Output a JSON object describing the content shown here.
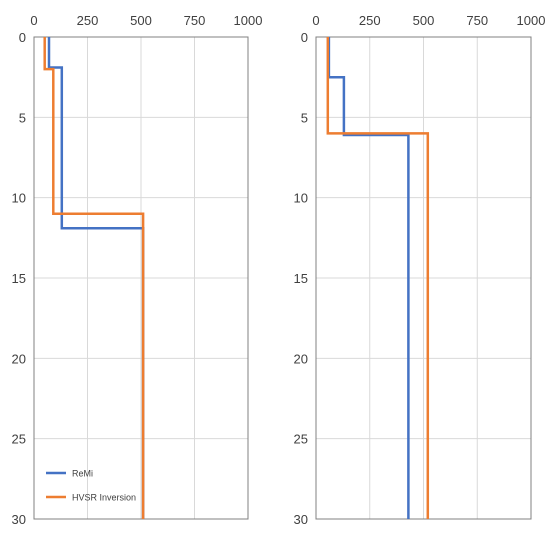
{
  "chart_data": [
    {
      "type": "line",
      "orientation": "vertical-profile",
      "x_axis_position": "top",
      "y_axis_inverted": true,
      "xlim": [
        0,
        1000
      ],
      "ylim": [
        0,
        30
      ],
      "x_ticks": [
        0,
        250,
        500,
        750,
        1000
      ],
      "y_ticks": [
        0,
        5,
        10,
        15,
        20,
        25,
        30
      ],
      "x_tick_labels": [
        "0",
        "250",
        "500",
        "750",
        "1000"
      ],
      "y_tick_labels": [
        "0",
        "5",
        "10",
        "15",
        "20",
        "25",
        "30"
      ],
      "grid": true,
      "legend": {
        "position": "bottom-left",
        "entries": [
          "ReMi",
          "HVSR Inversion"
        ]
      },
      "series": [
        {
          "name": "ReMi",
          "color": "#4472c4",
          "points": [
            [
              70,
              0
            ],
            [
              70,
              1.9
            ],
            [
              130,
              1.9
            ],
            [
              130,
              11.9
            ],
            [
              510,
              11.9
            ],
            [
              510,
              30
            ]
          ]
        },
        {
          "name": "HVSR Inversion",
          "color": "#ed7d31",
          "points": [
            [
              50,
              0
            ],
            [
              50,
              2.0
            ],
            [
              90,
              2.0
            ],
            [
              90,
              11.0
            ],
            [
              510,
              11.0
            ],
            [
              510,
              30
            ]
          ]
        }
      ]
    },
    {
      "type": "line",
      "orientation": "vertical-profile",
      "x_axis_position": "top",
      "y_axis_inverted": true,
      "xlim": [
        0,
        1000
      ],
      "ylim": [
        0,
        30
      ],
      "x_ticks": [
        0,
        250,
        500,
        750,
        1000
      ],
      "y_ticks": [
        0,
        5,
        10,
        15,
        20,
        25,
        30
      ],
      "x_tick_labels": [
        "0",
        "250",
        "500",
        "750",
        "1000"
      ],
      "y_tick_labels": [
        "0",
        "5",
        "10",
        "15",
        "20",
        "25",
        "30"
      ],
      "grid": true,
      "series": [
        {
          "name": "ReMi",
          "color": "#4472c4",
          "points": [
            [
              60,
              0
            ],
            [
              60,
              2.5
            ],
            [
              130,
              2.5
            ],
            [
              130,
              6.1
            ],
            [
              430,
              6.1
            ],
            [
              430,
              30
            ]
          ]
        },
        {
          "name": "HVSR Inversion",
          "color": "#ed7d31",
          "points": [
            [
              55,
              0
            ],
            [
              55,
              6.0
            ],
            [
              520,
              6.0
            ],
            [
              520,
              30
            ]
          ]
        }
      ]
    }
  ]
}
